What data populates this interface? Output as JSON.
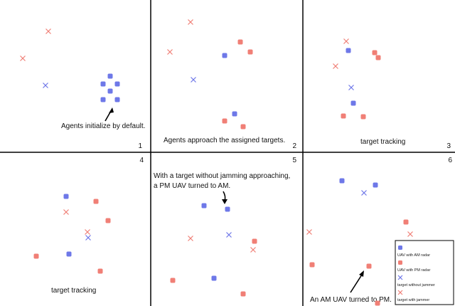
{
  "colors": {
    "am_uav": "#6e78e8",
    "pm_uav": "#f07f76",
    "target_no_jammer": "#6e78e8",
    "target_with_jammer": "#f07f76",
    "grid": "#000000"
  },
  "panels": [
    {
      "number": "1",
      "caption": "Agents initialize by default.",
      "am": [
        [
          155,
          107
        ],
        [
          145,
          118
        ],
        [
          165,
          118
        ],
        [
          155,
          128
        ],
        [
          145,
          140
        ],
        [
          165,
          140
        ]
      ],
      "pm": [],
      "tx_blue": [
        [
          64,
          120
        ]
      ],
      "tx_red": [
        [
          68,
          44
        ],
        [
          32,
          82
        ]
      ]
    },
    {
      "number": "2",
      "caption": "Agents approach the assigned targets.",
      "am": [
        [
          316,
          78
        ],
        [
          330,
          160
        ]
      ],
      "pm": [
        [
          338,
          59
        ],
        [
          352,
          73
        ],
        [
          316,
          170
        ],
        [
          342,
          178
        ]
      ],
      "tx_blue": [
        [
          272,
          112
        ]
      ],
      "tx_red": [
        [
          268,
          31
        ],
        [
          239,
          73
        ]
      ]
    },
    {
      "number": "3",
      "caption": "target tracking",
      "am": [
        [
          490,
          71
        ],
        [
          497,
          145
        ]
      ],
      "pm": [
        [
          527,
          74
        ],
        [
          532,
          81
        ],
        [
          483,
          163
        ],
        [
          511,
          164
        ]
      ],
      "tx_blue": [
        [
          494,
          123
        ]
      ],
      "tx_red": [
        [
          487,
          58
        ],
        [
          472,
          93
        ]
      ]
    },
    {
      "number": "4",
      "caption": "target tracking",
      "am": [
        [
          93,
          276
        ],
        [
          97,
          357
        ]
      ],
      "pm": [
        [
          135,
          283
        ],
        [
          152,
          310
        ],
        [
          51,
          360
        ],
        [
          141,
          381
        ]
      ],
      "tx_blue": [
        [
          124,
          334
        ]
      ],
      "tx_red": [
        [
          93,
          298
        ],
        [
          123,
          326
        ]
      ]
    },
    {
      "number": "5",
      "caption": "With a target without jamming approaching,\na PM UAV turned to AM.",
      "am": [
        [
          287,
          289
        ],
        [
          320,
          294
        ],
        [
          301,
          391
        ]
      ],
      "pm": [
        [
          358,
          339
        ],
        [
          243,
          394
        ],
        [
          342,
          413
        ]
      ],
      "tx_blue": [
        [
          322,
          330
        ]
      ],
      "tx_red": [
        [
          268,
          335
        ],
        [
          356,
          351
        ]
      ]
    },
    {
      "number": "6",
      "caption": "An AM UAV turned to PM.",
      "am": [
        [
          481,
          254
        ],
        [
          528,
          260
        ]
      ],
      "pm": [
        [
          571,
          312
        ],
        [
          439,
          372
        ],
        [
          519,
          374
        ],
        [
          531,
          426
        ]
      ],
      "tx_blue": [
        [
          512,
          271
        ]
      ],
      "tx_red": [
        [
          435,
          326
        ],
        [
          577,
          329
        ]
      ]
    }
  ],
  "legend": {
    "items": [
      {
        "kind": "am",
        "label": "UAV with AM radar"
      },
      {
        "kind": "pm",
        "label": "UAV with PM radar"
      },
      {
        "kind": "tx_blue",
        "label": "target without jammer"
      },
      {
        "kind": "tx_red",
        "label": "target with jammer"
      }
    ]
  }
}
